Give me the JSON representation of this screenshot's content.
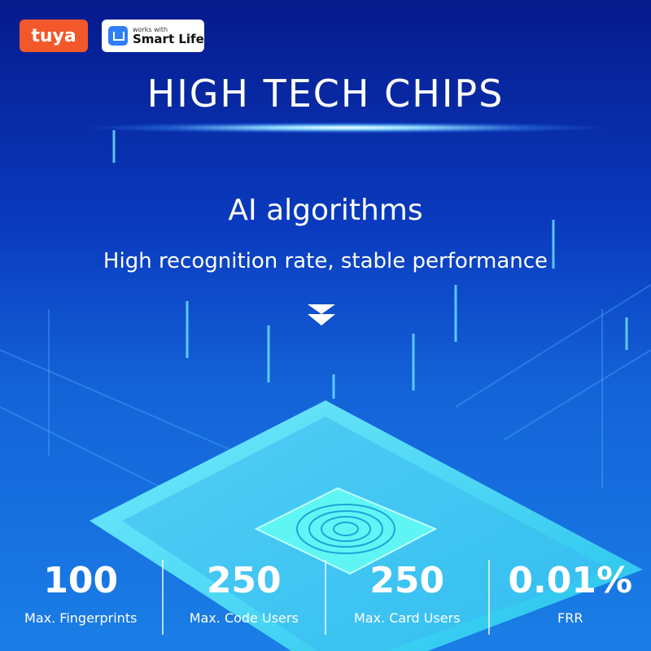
{
  "logos": {
    "tuya": "tuya",
    "smart_life_small": "works with",
    "smart_life_big": "Smart Life"
  },
  "title": "HIGH TECH CHIPS",
  "subtitle": "AI  algorithms",
  "tagline": "High recognition rate, stable performance",
  "icons": [
    "double-chevron-down-icon",
    "fingerprint-icon",
    "home-icon"
  ],
  "colors": {
    "tuya": "#f2582a",
    "smart_life": "#2f7ef5",
    "chip": "#3ff0f0",
    "background": "#0a3bbf"
  },
  "stats": [
    {
      "value": "100",
      "label": "Max. Fingerprints"
    },
    {
      "value": "250",
      "label": "Max. Code Users"
    },
    {
      "value": "250",
      "label": "Max. Card Users"
    },
    {
      "value": "0.01%",
      "label": "FRR"
    }
  ]
}
